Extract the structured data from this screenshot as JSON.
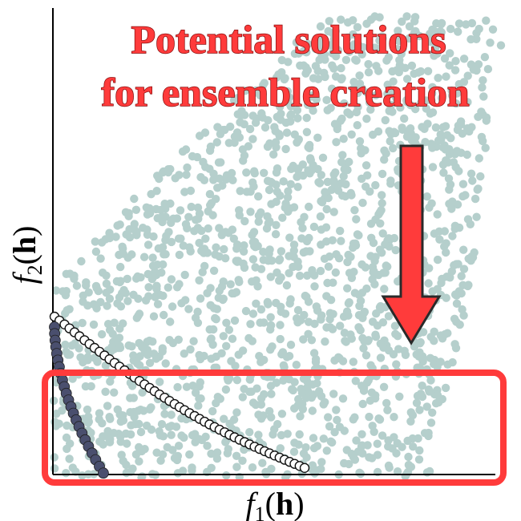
{
  "title": {
    "line1": "Potential solutions",
    "line2": "for ensemble creation"
  },
  "axes": {
    "x_label": {
      "f": "f",
      "sub": "1",
      "open": "(",
      "var": "h",
      "close": ")"
    },
    "y_label": {
      "f": "f",
      "sub": "2",
      "open": "(",
      "var": "h",
      "close": ")"
    }
  },
  "colors": {
    "cloud": "#b5cfcc",
    "highlight": "#ff3b3b",
    "arrow_fill": "#ff3b3b",
    "arrow_stroke": "#2a2a2a",
    "dark_points": "#4a4f6e",
    "open_points_stroke": "#111111",
    "axis": "#000000"
  }
}
